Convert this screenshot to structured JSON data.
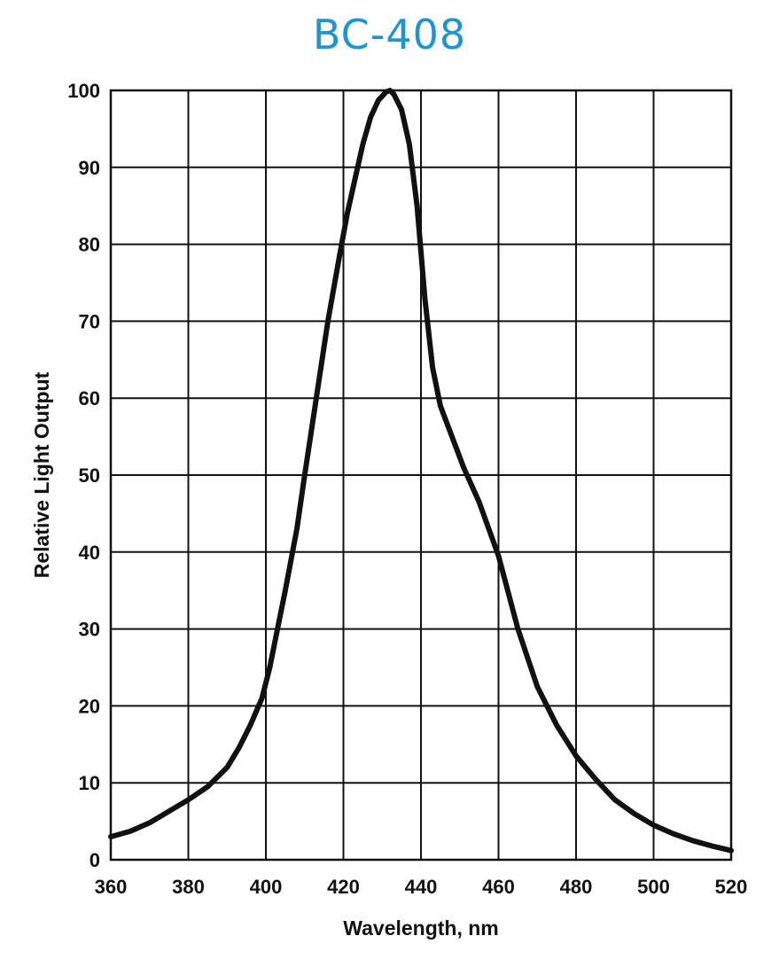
{
  "chart_data": {
    "type": "line",
    "title": "BC-408",
    "xlabel": "Wavelength, nm",
    "ylabel": "Relative Light Output",
    "xlim": [
      360,
      520
    ],
    "ylim": [
      0,
      100
    ],
    "x_ticks": [
      "360",
      "380",
      "400",
      "420",
      "440",
      "460",
      "480",
      "500",
      "520"
    ],
    "y_ticks": [
      "0",
      "10",
      "20",
      "30",
      "40",
      "50",
      "60",
      "70",
      "80",
      "90",
      "100"
    ],
    "grid": true,
    "legend": "none",
    "colors": {
      "title": "#1e95d3",
      "line": "#111111",
      "grid": "#111111"
    },
    "series": [
      {
        "x": [
          360,
          365,
          370,
          375,
          380,
          385,
          390,
          393,
          396,
          399,
          401,
          403,
          405,
          408,
          410,
          413,
          416,
          419,
          421,
          423,
          425,
          427,
          429,
          431,
          432,
          433,
          435,
          437,
          439,
          440,
          441,
          443,
          445,
          448,
          451,
          455,
          460,
          465,
          470,
          475,
          480,
          485,
          490,
          495,
          500,
          505,
          510,
          515,
          520
        ],
        "y": [
          3,
          3.7,
          4.8,
          6.3,
          7.8,
          9.5,
          12,
          14.5,
          17.5,
          21,
          25,
          30,
          35,
          43,
          50,
          60,
          70,
          78.5,
          84,
          88.5,
          93,
          96.5,
          98.7,
          99.8,
          100,
          99.5,
          97.5,
          93,
          85,
          79,
          73,
          64,
          59,
          55,
          51,
          46.5,
          39.5,
          30,
          22.5,
          17.5,
          13.5,
          10.5,
          7.8,
          6,
          4.5,
          3.4,
          2.5,
          1.8,
          1.2
        ]
      }
    ]
  }
}
